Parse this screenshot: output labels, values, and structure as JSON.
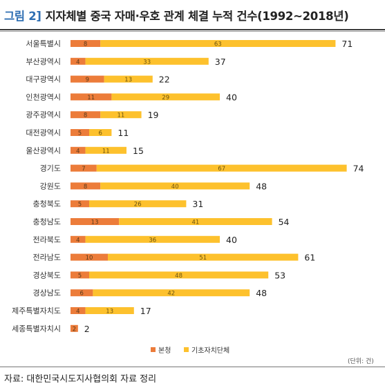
{
  "header": {
    "figure_label": "그림 2]",
    "title": "지자체별 중국 자매·우호 관계 체결 누적 건수(1992~2018년)"
  },
  "footer": {
    "unit_note": "(단위: 건)",
    "source": "자료: 대한민국시도지사협의회 자료 정리"
  },
  "colors": {
    "series1": "#ec7c3a",
    "series2": "#fdc12d"
  },
  "chart_data": {
    "type": "bar",
    "orientation": "horizontal",
    "stacked": true,
    "categories": [
      "서울특별시",
      "부산광역시",
      "대구광역시",
      "인천광역시",
      "광주광역시",
      "대전광역시",
      "울산광역시",
      "경기도",
      "강원도",
      "충청북도",
      "충청남도",
      "전라북도",
      "전라남도",
      "경상북도",
      "경상남도",
      "제주특별자치도",
      "세종특별자치시"
    ],
    "series": [
      {
        "name": "본청",
        "values": [
          8,
          4,
          9,
          11,
          8,
          5,
          4,
          7,
          8,
          5,
          13,
          4,
          10,
          5,
          6,
          4,
          2
        ]
      },
      {
        "name": "기초자치단체",
        "values": [
          63,
          33,
          13,
          29,
          11,
          6,
          11,
          67,
          40,
          26,
          41,
          36,
          51,
          48,
          42,
          13,
          null
        ]
      }
    ],
    "totals": [
      71,
      37,
      22,
      40,
      19,
      11,
      15,
      74,
      48,
      31,
      54,
      40,
      61,
      53,
      48,
      17,
      2
    ],
    "xlim": [
      0,
      75
    ],
    "grid": false,
    "legend_position": "bottom"
  }
}
